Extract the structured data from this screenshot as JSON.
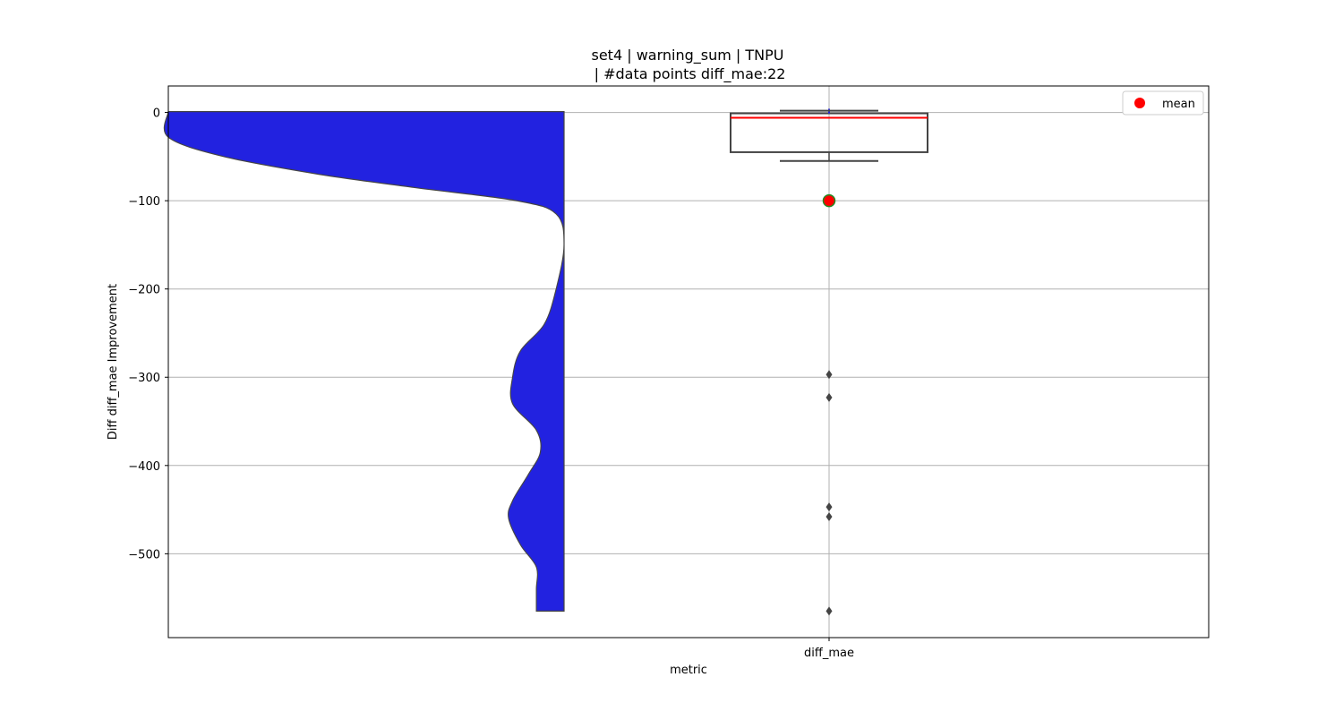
{
  "chart_data": {
    "type": "violin+box",
    "title_line1": "set4 | warning_sum | TNPU",
    "title_line2": " | #data points diff_mae:22",
    "xlabel": "metric",
    "ylabel": "Diff diff_mae Improvement",
    "categories": [
      "diff_mae"
    ],
    "ylim": [
      -595,
      30
    ],
    "yticks": [
      0,
      -100,
      -200,
      -300,
      -400,
      -500
    ],
    "ytick_labels": [
      "0",
      "−100",
      "−200",
      "−300",
      "−400",
      "−500"
    ],
    "grid": true,
    "legend": {
      "position": "top-right",
      "entries": [
        {
          "label": "mean",
          "color": "#ff0000",
          "marker": "circle"
        }
      ]
    },
    "violin": {
      "color": "#2222e0",
      "side": "left-half",
      "y_top": 1,
      "y_bottom": -565,
      "profile": [
        [
          1,
          1.0
        ],
        [
          -28,
          1.0
        ],
        [
          -50,
          0.86
        ],
        [
          -70,
          0.62
        ],
        [
          -85,
          0.38
        ],
        [
          -100,
          0.12
        ],
        [
          -115,
          0.02
        ],
        [
          -150,
          0.0
        ],
        [
          -200,
          0.02
        ],
        [
          -240,
          0.05
        ],
        [
          -270,
          0.11
        ],
        [
          -300,
          0.13
        ],
        [
          -330,
          0.13
        ],
        [
          -360,
          0.07
        ],
        [
          -385,
          0.06
        ],
        [
          -410,
          0.09
        ],
        [
          -440,
          0.13
        ],
        [
          -460,
          0.14
        ],
        [
          -490,
          0.11
        ],
        [
          -515,
          0.07
        ],
        [
          -540,
          0.07
        ],
        [
          -565,
          0.07
        ]
      ]
    },
    "box": {
      "q1": -45,
      "median": -6,
      "q3": -1,
      "whisker_low": -55,
      "whisker_high": 2,
      "mean": -100,
      "outliers": [
        -297,
        -323,
        -447,
        -458,
        -565
      ],
      "box_color": "#ffffff",
      "edge_color": "#444444",
      "median_color": "#ff0000",
      "mean_color": "#ff0000",
      "mean_edge_color": "#228b22"
    }
  }
}
